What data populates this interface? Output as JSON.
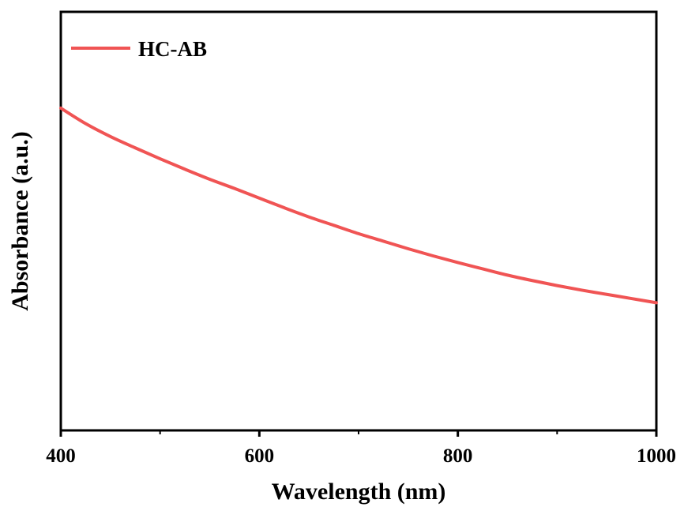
{
  "chart_data": {
    "type": "line",
    "title": "",
    "xlabel": "Wavelength (nm)",
    "ylabel": "Absorbance (a.u.)",
    "xlim": [
      400,
      1000
    ],
    "ylim": [
      0,
      1
    ],
    "xticks": [
      400,
      600,
      800,
      1000
    ],
    "xtick_labels": [
      "400",
      "600",
      "800",
      "1000"
    ],
    "x_minor_ticks": [
      500,
      700,
      900
    ],
    "yticks_shown": false,
    "grid": false,
    "legend": {
      "position": "top-left",
      "entries": [
        "HC-AB"
      ]
    },
    "series": [
      {
        "name": "HC-AB",
        "color": "#f05454",
        "x": [
          400,
          425,
          450,
          475,
          500,
          525,
          550,
          575,
          600,
          625,
          650,
          675,
          700,
          725,
          750,
          775,
          800,
          825,
          850,
          875,
          900,
          925,
          950,
          975,
          1000
        ],
        "y": [
          0.77,
          0.733,
          0.702,
          0.675,
          0.649,
          0.624,
          0.6,
          0.578,
          0.555,
          0.532,
          0.51,
          0.49,
          0.47,
          0.452,
          0.434,
          0.417,
          0.401,
          0.386,
          0.371,
          0.358,
          0.346,
          0.335,
          0.325,
          0.315,
          0.305
        ]
      }
    ]
  }
}
